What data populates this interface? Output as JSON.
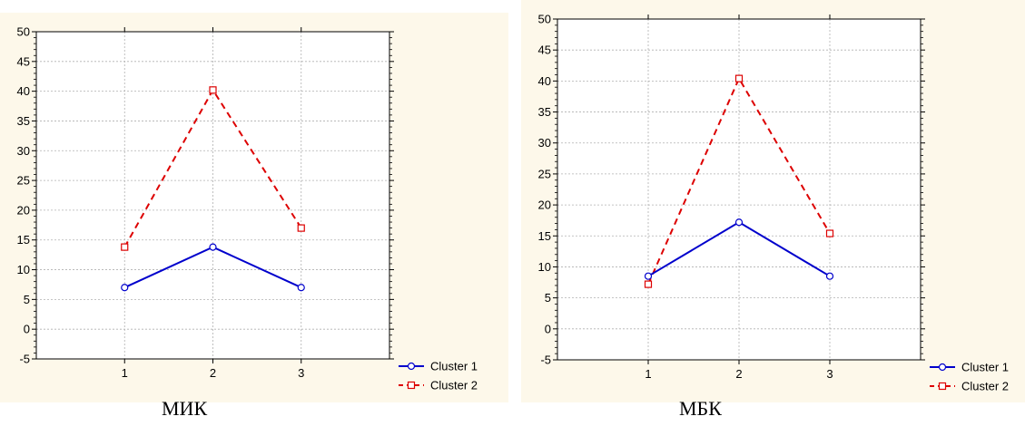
{
  "chart_data": [
    {
      "type": "line",
      "caption": "МИК",
      "categories": [
        "1",
        "2",
        "3"
      ],
      "x": [
        1,
        2,
        3
      ],
      "xlim": [
        0,
        4
      ],
      "ylim": [
        -5,
        50
      ],
      "yticks": [
        "-5",
        "0",
        "5",
        "10",
        "15",
        "20",
        "25",
        "30",
        "35",
        "40",
        "45",
        "50"
      ],
      "grid": true,
      "legend_position": "bottom-right",
      "series": [
        {
          "name": "Cluster 1",
          "values": [
            7,
            13.8,
            7
          ],
          "color": "#0000cc",
          "line": "solid",
          "marker": "circle"
        },
        {
          "name": "Cluster 2",
          "values": [
            13.8,
            40.2,
            17
          ],
          "color": "#dd0000",
          "line": "dashed",
          "marker": "square"
        }
      ]
    },
    {
      "type": "line",
      "caption": "МБК",
      "categories": [
        "1",
        "2",
        "3"
      ],
      "x": [
        1,
        2,
        3
      ],
      "xlim": [
        0,
        4
      ],
      "ylim": [
        -5,
        50
      ],
      "yticks": [
        "-5",
        "0",
        "5",
        "10",
        "15",
        "20",
        "25",
        "30",
        "35",
        "40",
        "45",
        "50"
      ],
      "grid": true,
      "legend_position": "bottom-right",
      "series": [
        {
          "name": "Cluster 1",
          "values": [
            8.5,
            17.2,
            8.5
          ],
          "color": "#0000cc",
          "line": "solid",
          "marker": "circle"
        },
        {
          "name": "Cluster 2",
          "values": [
            7.2,
            40.4,
            15.4
          ],
          "color": "#dd0000",
          "line": "dashed",
          "marker": "square"
        }
      ]
    }
  ]
}
